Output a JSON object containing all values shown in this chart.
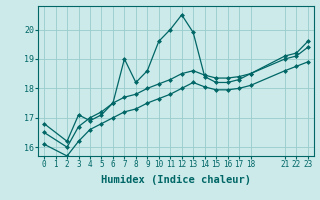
{
  "title": "",
  "xlabel": "Humidex (Indice chaleur)",
  "bg_color": "#cceaea",
  "grid_color": "#99cccc",
  "line_color": "#006666",
  "xlim": [
    -0.5,
    23.5
  ],
  "ylim": [
    15.7,
    20.8
  ],
  "xticks": [
    0,
    1,
    2,
    3,
    4,
    5,
    6,
    7,
    8,
    9,
    10,
    11,
    12,
    13,
    14,
    15,
    16,
    17,
    18,
    21,
    22,
    23
  ],
  "yticks": [
    16,
    17,
    18,
    19,
    20
  ],
  "line1_x": [
    0,
    2,
    3,
    4,
    5,
    6,
    7,
    8,
    9,
    10,
    11,
    12,
    13,
    14,
    15,
    16,
    17,
    18,
    21,
    22,
    23
  ],
  "line1_y": [
    16.8,
    16.2,
    17.1,
    16.9,
    17.1,
    17.5,
    19.0,
    18.2,
    18.6,
    19.6,
    20.0,
    20.5,
    19.9,
    18.4,
    18.2,
    18.2,
    18.3,
    18.5,
    19.1,
    19.2,
    19.6
  ],
  "line2_x": [
    0,
    2,
    3,
    4,
    5,
    6,
    7,
    8,
    9,
    10,
    11,
    12,
    13,
    14,
    15,
    16,
    17,
    18,
    21,
    22,
    23
  ],
  "line2_y": [
    16.5,
    16.0,
    16.7,
    17.0,
    17.2,
    17.5,
    17.7,
    17.8,
    18.0,
    18.15,
    18.3,
    18.5,
    18.6,
    18.45,
    18.35,
    18.35,
    18.4,
    18.5,
    19.0,
    19.1,
    19.4
  ],
  "line3_x": [
    0,
    2,
    3,
    4,
    5,
    6,
    7,
    8,
    9,
    10,
    11,
    12,
    13,
    14,
    15,
    16,
    17,
    18,
    21,
    22,
    23
  ],
  "line3_y": [
    16.1,
    15.7,
    16.2,
    16.6,
    16.8,
    17.0,
    17.2,
    17.3,
    17.5,
    17.65,
    17.8,
    18.0,
    18.2,
    18.05,
    17.95,
    17.95,
    18.0,
    18.1,
    18.6,
    18.75,
    18.9
  ],
  "marker_size": 2.5,
  "linewidth": 0.9,
  "tick_fontsize": 5.5,
  "xlabel_fontsize": 7.5
}
